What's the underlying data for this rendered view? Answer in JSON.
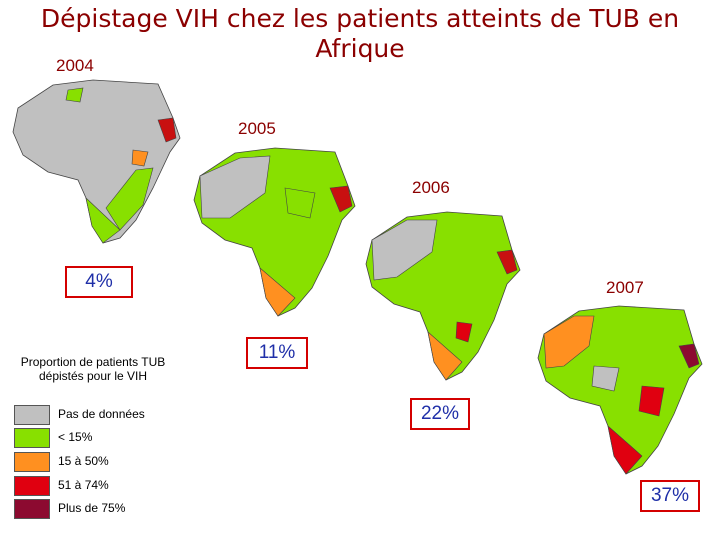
{
  "title": "Dépistage VIH chez les patients atteints de TUB en Afrique",
  "maps": [
    {
      "year": "2004",
      "percent": "4%"
    },
    {
      "year": "2005",
      "percent": "11%"
    },
    {
      "year": "2006",
      "percent": "22%"
    },
    {
      "year": "2007",
      "percent": "37%"
    }
  ],
  "legend": {
    "title": "Proportion de patients TUB dépistés pour le VIH",
    "items": [
      {
        "label": "Pas de données",
        "color": "#c0c0c0"
      },
      {
        "label": "< 15%",
        "color": "#88e000"
      },
      {
        "label": "15 à 50%",
        "color": "#ff9020"
      },
      {
        "label": "51 à 74%",
        "color": "#e00010"
      },
      {
        "label": "Plus de 75%",
        "color": "#8c0a30"
      }
    ]
  }
}
